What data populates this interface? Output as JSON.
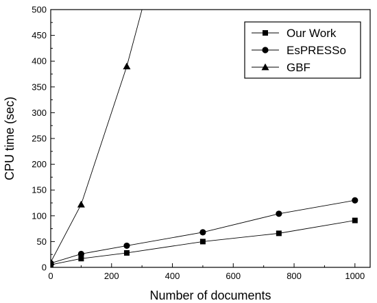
{
  "chart_data": {
    "type": "line",
    "xlabel": "Number of documents",
    "ylabel": "CPU time (sec)",
    "xlim": [
      0,
      1050
    ],
    "ylim": [
      0,
      500
    ],
    "xticks": [
      0,
      200,
      400,
      600,
      800,
      1000
    ],
    "yticks": [
      0,
      50,
      100,
      150,
      200,
      250,
      300,
      350,
      400,
      450,
      500
    ],
    "grid": false,
    "legend_position": "top-right",
    "series": [
      {
        "name": "Our Work",
        "marker": "square",
        "x": [
          0,
          100,
          250,
          500,
          750,
          1000
        ],
        "y": [
          5,
          17,
          28,
          50,
          66,
          91
        ]
      },
      {
        "name": "EsPRESSo",
        "marker": "circle",
        "x": [
          0,
          100,
          250,
          500,
          750,
          1000
        ],
        "y": [
          8,
          26,
          42,
          68,
          104,
          130
        ]
      },
      {
        "name": "GBF",
        "marker": "triangle",
        "x": [
          0,
          100,
          250,
          300
        ],
        "y": [
          10,
          122,
          390,
          500
        ],
        "note_last_point_clipped": true
      }
    ]
  }
}
